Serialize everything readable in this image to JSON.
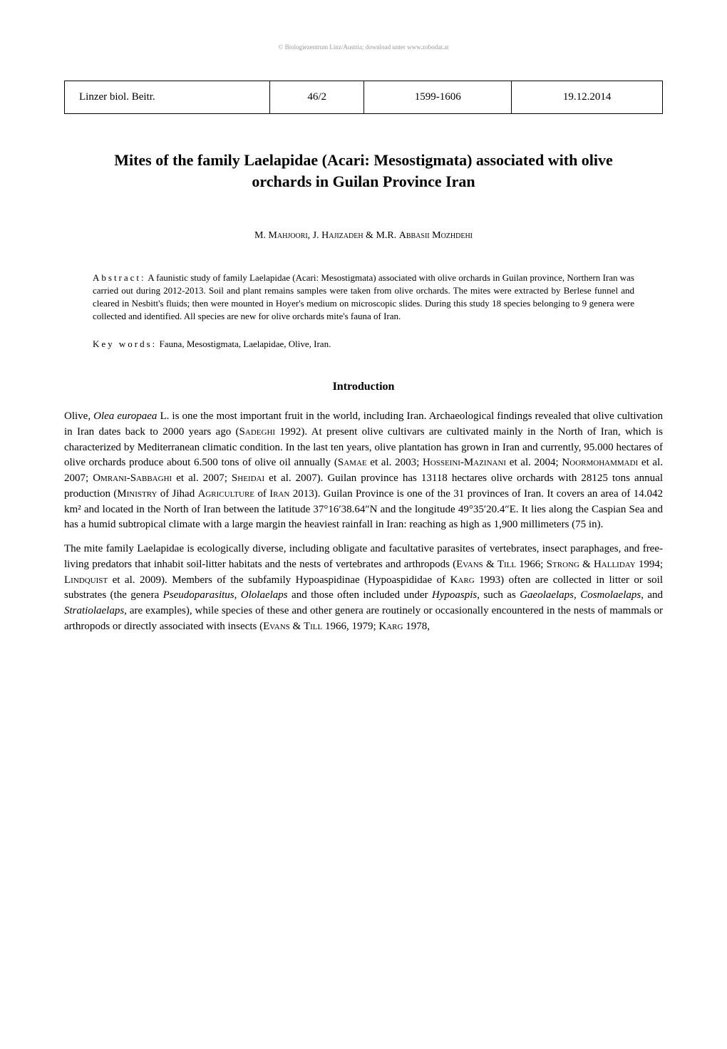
{
  "watermark": "© Biologiezentrum Linz/Austria; download unter www.zobodat.at",
  "header": {
    "journal": "Linzer biol. Beitr.",
    "volume": "46/2",
    "pages": "1599-1606",
    "date": "19.12.2014"
  },
  "title": "Mites of the family Laelapidae (Acari: Mesostigmata) associated with olive orchards in Guilan Province Iran",
  "authors": {
    "a1_initials": "M. ",
    "a1_surname": "Mahjoori",
    "sep1": ", ",
    "a2_initials": "J. ",
    "a2_surname": "Hajizadeh",
    "sep2": " & ",
    "a3_initials": "M.R. ",
    "a3_surname": "Abbasii Mozhdehi"
  },
  "abstract_label": "Abstract:",
  "abstract_text": " A faunistic study of family Laelapidae (Acari: Mesostigmata) associated with olive orchards in Guilan province, Northern Iran was carried out during 2012-2013. Soil and plant remains samples were taken from olive orchards. The mites were extracted by Berlese funnel and cleared in Nesbitt's fluids; then were mounted in Hoyer's medium on microscopic slides. During this study 18 species belonging to 9 genera were collected and identified. All species are new for olive orchards mite's fauna of Iran.",
  "keywords_label": "Key words:",
  "keywords_text": " Fauna, Mesostigmata, Laelapidae, Olive, Iran.",
  "section_heading": "Introduction",
  "para1": {
    "t1": "Olive, ",
    "i1": "Olea europaea",
    "t2": " L. is one the most important fruit in the world, including Iran. Archaeological findings revealed that olive cultivation in Iran dates back to 2000 years ago (",
    "sc1": "Sadeghi",
    "t3": " 1992). At present olive cultivars are cultivated mainly in the North of Iran, which is characterized by Mediterranean climatic condition. In the last ten years, olive plantation has grown in Iran and currently, 95.000 hectares of olive orchards produce about 6.500 tons of olive oil annually (",
    "sc2": "Samae",
    "t4": " et al. 2003; ",
    "sc3": "Hosseini-Mazinani",
    "t5": " et al. 2004; ",
    "sc4": "Noormohammadi",
    "t6": " et al. 2007; ",
    "sc5": "Omrani-Sabbaghi",
    "t7": " et al. 2007; ",
    "sc6": "Sheidai",
    "t8": " et al. 2007). Guilan province has 13118 hectares olive orchards with 28125 tons annual production (",
    "sc7": "Ministry",
    "t9": " of Jihad ",
    "sc8": "Agriculture",
    "t10": " of ",
    "sc9": "Iran",
    "t11": " 2013). Guilan Province is one of the 31 provinces of Iran. It covers an area of 14.042 km² and located in the North of Iran between the latitude 37°16′38.64″N and the longitude 49°35′20.4″E. It lies along the Caspian Sea and has a humid subtropical climate with a large margin the heaviest rainfall in Iran: reaching as high as 1,900 millimeters (75 in)."
  },
  "para2": {
    "t1": "The mite family Laelapidae is ecologically diverse, including obligate and facultative parasites of vertebrates, insect paraphages, and free-living predators that inhabit soil-litter habitats and the nests of vertebrates and arthropods (",
    "sc1": "Evans",
    "t2": " & ",
    "sc2": "Till",
    "t3": " 1966; ",
    "sc3": "Strong",
    "t4": " & ",
    "sc4": "Halliday",
    "t5": " 1994; ",
    "sc5": "Lindquist",
    "t6": " et al. 2009). Members of the subfamily Hypoaspidinae (Hypoaspididae of ",
    "sc6": "Karg",
    "t7": " 1993) often are collected in litter or soil substrates (the genera ",
    "i1": "Pseudoparasitus",
    "t8": ", ",
    "i2": "Ololaelaps",
    "t9": " and those often included under ",
    "i3": "Hypoaspis",
    "t10": ", such as ",
    "i4": "Gaeolaelaps",
    "t11": ", ",
    "i5": "Cosmolaelaps",
    "t12": ", and ",
    "i6": "Stratiolaelaps",
    "t13": ", are examples), while species of these and other genera are routinely or occasionally encountered in the nests of mammals or arthropods or directly associated with insects (",
    "sc7": "Evans",
    "t14": " & ",
    "sc8": "Till",
    "t15": " 1966, 1979; ",
    "sc9": "Karg",
    "t16": " 1978,"
  }
}
